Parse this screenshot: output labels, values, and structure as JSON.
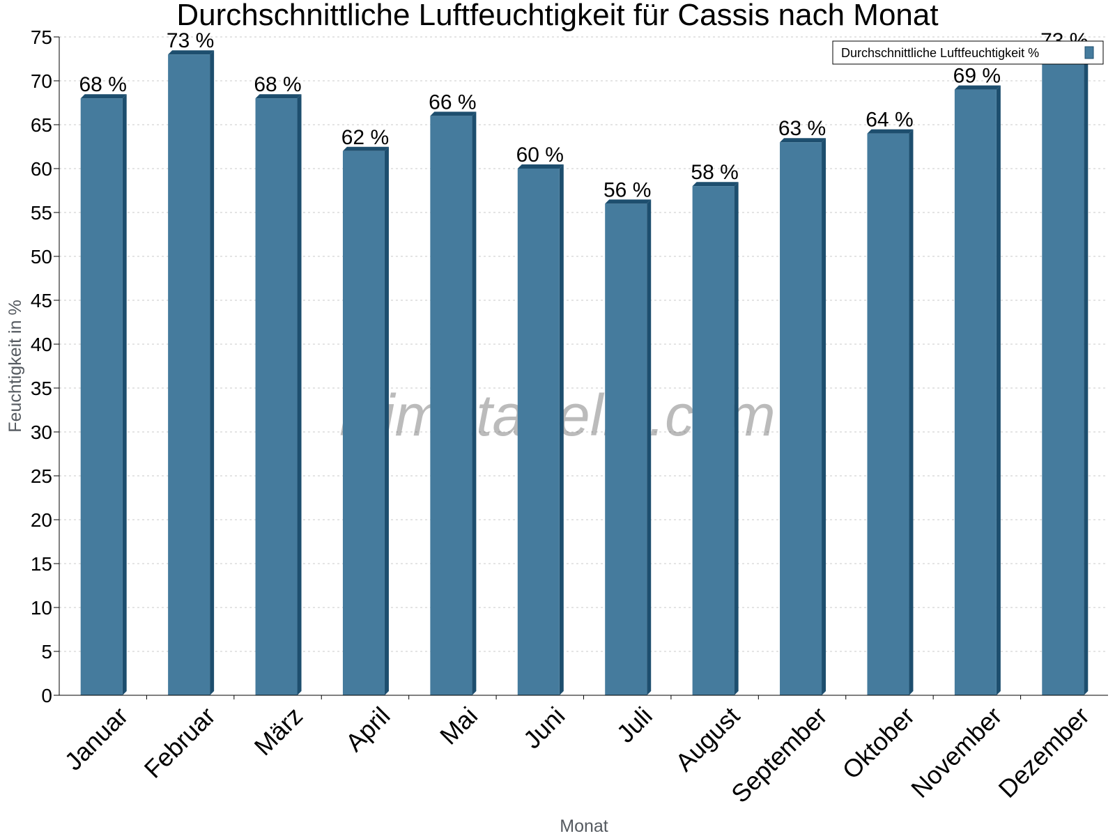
{
  "chart_data": {
    "type": "bar",
    "title": "Durchschnittliche Luftfeuchtigkeit für Cassis nach Monat",
    "xlabel": "Monat",
    "ylabel": "Feuchtigkeit in %",
    "ylim": [
      0,
      75
    ],
    "ytick_step": 5,
    "grid": true,
    "legend_position": "top-right",
    "categories": [
      "Januar",
      "Februar",
      "März",
      "April",
      "Mai",
      "Juni",
      "Juli",
      "August",
      "September",
      "Oktober",
      "November",
      "Dezember"
    ],
    "series": [
      {
        "name": "Durchschnittliche Luftfeuchtigkeit %",
        "values": [
          68,
          73,
          68,
          62,
          66,
          60,
          56,
          58,
          63,
          64,
          69,
          73
        ],
        "labels": [
          "68 %",
          "73 %",
          "68 %",
          "62 %",
          "66 %",
          "60 %",
          "56 %",
          "58 %",
          "63 %",
          "64 %",
          "69 %",
          "73 %"
        ],
        "color": "#457b9d",
        "edge_color": "#1d4e6e"
      }
    ]
  },
  "watermark": "klimatabelle.com"
}
